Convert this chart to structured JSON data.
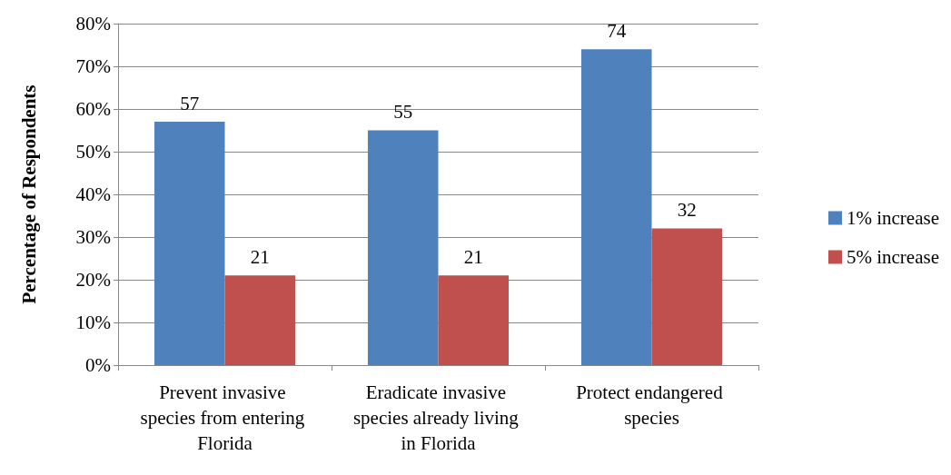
{
  "chart_data": {
    "type": "bar",
    "ylabel": "Percentage of Respondents",
    "categories": [
      "Prevent invasive species from entering Florida",
      "Eradicate invasive species already living in Florida",
      "Protect endangered species"
    ],
    "series": [
      {
        "name": "1% increase",
        "color": "#4f81bd",
        "values": [
          57,
          55,
          74
        ]
      },
      {
        "name": "5% increase",
        "color": "#c0504d",
        "values": [
          21,
          21,
          32
        ]
      }
    ],
    "ylim": [
      0,
      80
    ],
    "yticks": [
      {
        "value": 0,
        "label": "0%"
      },
      {
        "value": 10,
        "label": "10%"
      },
      {
        "value": 20,
        "label": "20%"
      },
      {
        "value": 30,
        "label": "30%"
      },
      {
        "value": 40,
        "label": "40%"
      },
      {
        "value": 50,
        "label": "50%"
      },
      {
        "value": 60,
        "label": "60%"
      },
      {
        "value": 70,
        "label": "70%"
      },
      {
        "value": 80,
        "label": "80%"
      }
    ],
    "grid": "y",
    "legend": "right",
    "data_labels": true
  }
}
